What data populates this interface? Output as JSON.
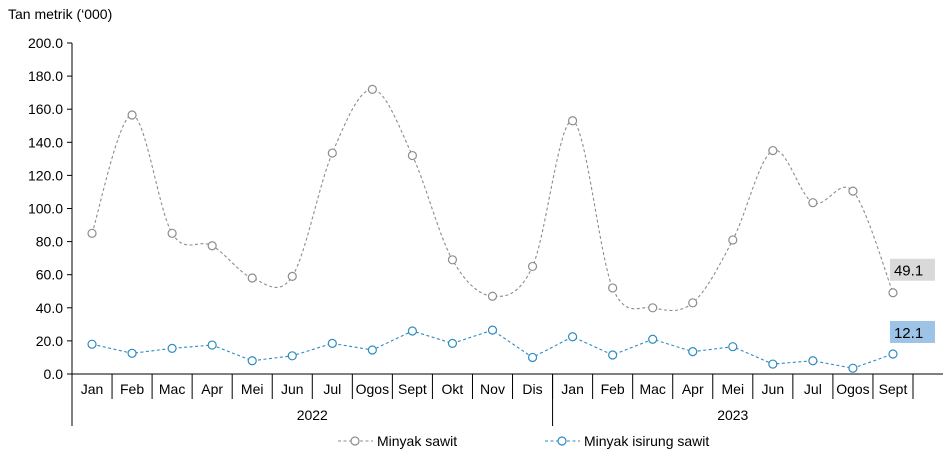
{
  "chart_data": {
    "type": "line",
    "ylabel": "Tan metrik (‘000)",
    "ylim": [
      0,
      200
    ],
    "yticks": [
      "0.0",
      "20.0",
      "40.0",
      "60.0",
      "80.0",
      "100.0",
      "120.0",
      "140.0",
      "160.0",
      "180.0",
      "200.0"
    ],
    "categories": [
      "Jan",
      "Feb",
      "Mac",
      "Apr",
      "Mei",
      "Jun",
      "Jul",
      "Ogos",
      "Sept",
      "Okt",
      "Nov",
      "Dis",
      "Jan",
      "Feb",
      "Mac",
      "Apr",
      "Mei",
      "Jun",
      "Jul",
      "Ogos",
      "Sept"
    ],
    "year_groups": [
      {
        "label": "2022",
        "count": 12
      },
      {
        "label": "2023",
        "count": 9
      }
    ],
    "series": [
      {
        "name": "Minyak sawit",
        "color": "#8c8c8c",
        "smooth": true,
        "values": [
          85,
          156.5,
          85,
          77.5,
          58,
          59,
          133.5,
          172,
          132,
          69,
          47,
          65,
          153,
          52,
          40,
          43,
          81,
          135,
          103.5,
          110.5,
          49.1
        ],
        "end_label": "49.1",
        "end_label_bg": "#d9d9d9"
      },
      {
        "name": "Minyak isirung sawit",
        "color": "#2e8bc0",
        "smooth": false,
        "values": [
          18,
          12.5,
          15.5,
          17.5,
          8,
          11,
          18.5,
          14.5,
          26,
          18.5,
          26.5,
          10,
          22.5,
          11.5,
          21,
          13.5,
          16.5,
          6,
          8,
          3.5,
          12.1
        ],
        "end_label": "12.1",
        "end_label_bg": "#9dc3e6"
      }
    ],
    "grid": false,
    "legend_position": "bottom"
  }
}
